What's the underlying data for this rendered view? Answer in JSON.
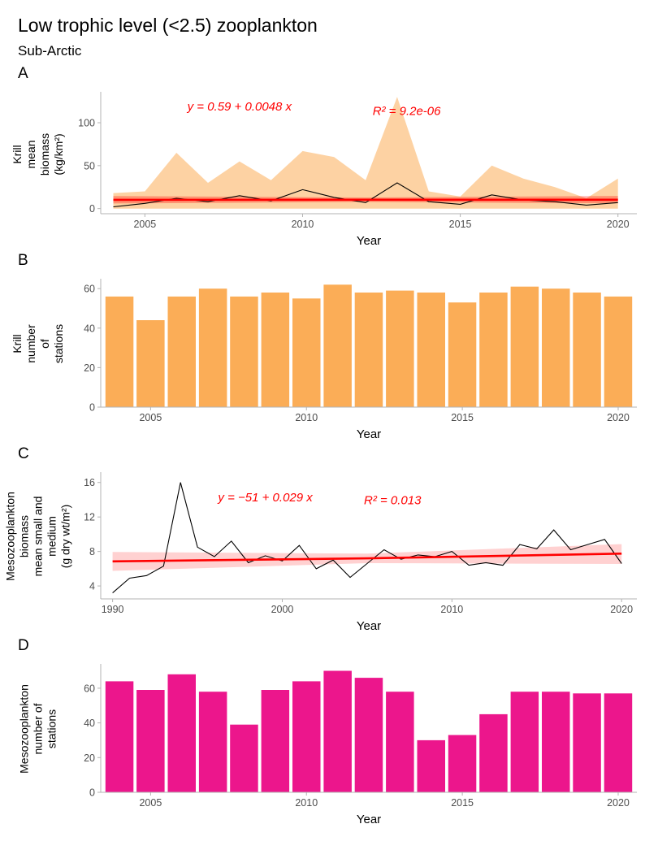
{
  "header": {
    "title": "Low trophic level (<2.5) zooplankton",
    "subtitle": "Sub-Arctic"
  },
  "colors": {
    "axis": "#b3b3b3",
    "tick_text": "#4d4d4d",
    "black_line": "#000000",
    "red_line": "#ff0000",
    "annotation": "#ff0000",
    "krill_orange": "#fbad57",
    "meso_pink": "#ec168c",
    "reg_band_red": "#ff0000"
  },
  "chart_data": [
    {
      "tag": "A",
      "type": "line",
      "title": "Krill mean biomass time series with regression",
      "ylabel": "Krill\nmean biomass\n(kg/km²)",
      "xlabel": "Year",
      "xlim": [
        2003.6,
        2020.6
      ],
      "ylim": [
        -6,
        136
      ],
      "xticks": [
        2005,
        2010,
        2015,
        2020
      ],
      "yticks": [
        0,
        50,
        100
      ],
      "x": [
        2004,
        2005,
        2006,
        2007,
        2008,
        2009,
        2010,
        2011,
        2012,
        2013,
        2014,
        2015,
        2016,
        2017,
        2018,
        2019,
        2020
      ],
      "values": [
        2,
        6,
        12,
        8,
        15,
        9,
        22,
        13,
        7,
        30,
        8,
        5,
        16,
        10,
        8,
        4,
        7
      ],
      "ribbon_upper": [
        18,
        20,
        65,
        30,
        55,
        33,
        67,
        60,
        33,
        130,
        20,
        14,
        50,
        35,
        25,
        12,
        35
      ],
      "ribbon_lower": [
        0,
        0,
        0,
        0,
        0,
        0,
        0,
        0,
        0,
        0,
        0,
        0,
        0,
        0,
        0,
        0,
        0
      ],
      "ribbon_color": "#fbad57",
      "ribbon_opacity": 0.55,
      "regression": {
        "equation": "y = 0.59 + 0.0048 x",
        "r_squared": "R² = 9.2e-06",
        "x": [
          2004,
          2012,
          2020
        ],
        "y": [
          10.2,
          10.25,
          10.3
        ],
        "upper": [
          14.6,
          12.9,
          14.7
        ],
        "lower": [
          5.9,
          7.7,
          6.0
        ],
        "band_opacity": 0.3
      },
      "annotations": [
        {
          "text": "y = 0.59 + 0.0048 x",
          "x": 2008.0,
          "y": 114
        },
        {
          "text": "R² = 9.2e-06",
          "x": 2013.3,
          "y": 109
        }
      ]
    },
    {
      "tag": "B",
      "type": "bar",
      "title": "Krill number of stations",
      "ylabel": "Krill\nnumber of stations",
      "xlabel": "Year",
      "xlim": [
        2003.4,
        2020.6
      ],
      "ylim": [
        0,
        65
      ],
      "xticks": [
        2005,
        2010,
        2015,
        2020
      ],
      "yticks": [
        0,
        20,
        40,
        60
      ],
      "x": [
        2004,
        2005,
        2006,
        2007,
        2008,
        2009,
        2010,
        2011,
        2012,
        2013,
        2014,
        2015,
        2016,
        2017,
        2018,
        2019,
        2020
      ],
      "values": [
        56,
        44,
        56,
        60,
        56,
        58,
        55,
        62,
        58,
        59,
        58,
        53,
        58,
        61,
        60,
        58,
        56
      ],
      "color": "#fbad57"
    },
    {
      "tag": "C",
      "type": "line",
      "title": "Mesozooplankton biomass time series with regression",
      "ylabel": "Mesozooplankton biomass\nmean small and medium\n(g dry wt/m²)",
      "xlabel": "Year",
      "xlim": [
        1989.3,
        2020.9
      ],
      "ylim": [
        2.5,
        17.2
      ],
      "xticks": [
        1990,
        2000,
        2010,
        2020
      ],
      "yticks": [
        4,
        8,
        12,
        16
      ],
      "x": [
        1990,
        1991,
        1992,
        1993,
        1994,
        1995,
        1996,
        1997,
        1998,
        1999,
        2000,
        2001,
        2002,
        2003,
        2004,
        2005,
        2006,
        2007,
        2008,
        2009,
        2010,
        2011,
        2012,
        2013,
        2014,
        2015,
        2016,
        2017,
        2018,
        2019,
        2020
      ],
      "values": [
        3.2,
        4.9,
        5.2,
        6.3,
        16.0,
        8.5,
        7.4,
        9.2,
        6.7,
        7.5,
        6.9,
        8.7,
        6.0,
        7.0,
        5.0,
        6.6,
        8.2,
        7.1,
        7.6,
        7.4,
        8.0,
        6.4,
        6.7,
        6.4,
        8.8,
        8.3,
        10.5,
        8.2,
        8.8,
        9.4,
        6.6
      ],
      "regression": {
        "equation": "y = −51 + 0.029 x",
        "r_squared": "R² = 0.013",
        "x": [
          1990,
          2005,
          2020
        ],
        "y": [
          6.85,
          7.2,
          7.75
        ],
        "upper": [
          7.95,
          7.75,
          8.85
        ],
        "lower": [
          5.75,
          6.65,
          6.55
        ],
        "band_opacity": 0.18
      },
      "annotations": [
        {
          "text": "y = −51 + 0.029 x",
          "x": 1999.0,
          "y": 13.8
        },
        {
          "text": "R² = 0.013",
          "x": 2006.5,
          "y": 13.5
        }
      ]
    },
    {
      "tag": "D",
      "type": "bar",
      "title": "Mesozooplankton number of stations",
      "ylabel": "Mesozooplankton\nnumber of stations",
      "xlabel": "Year",
      "xlim": [
        2003.4,
        2020.6
      ],
      "ylim": [
        0,
        74
      ],
      "xticks": [
        2005,
        2010,
        2015,
        2020
      ],
      "yticks": [
        0,
        20,
        40,
        60
      ],
      "x": [
        2004,
        2005,
        2006,
        2007,
        2008,
        2009,
        2010,
        2011,
        2012,
        2013,
        2014,
        2015,
        2016,
        2017,
        2018,
        2019,
        2020
      ],
      "values": [
        64,
        59,
        68,
        58,
        39,
        59,
        64,
        70,
        66,
        58,
        30,
        33,
        45,
        58,
        58,
        57,
        57
      ],
      "color": "#ec168c"
    }
  ]
}
